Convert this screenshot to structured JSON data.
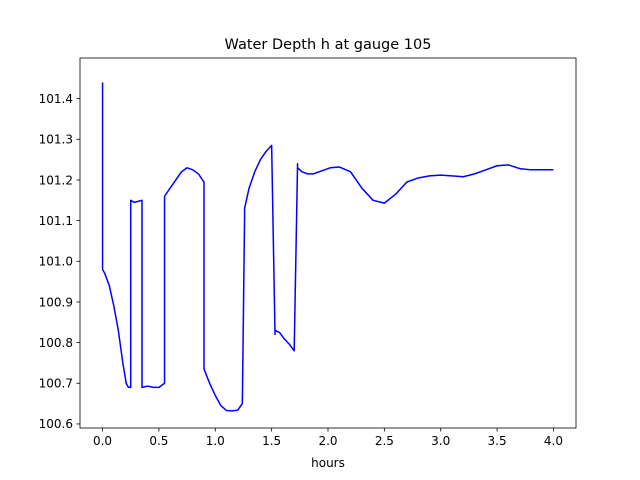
{
  "chart_data": {
    "type": "line",
    "title": "Water Depth h at gauge 105",
    "xlabel": "hours",
    "ylabel": "",
    "xlim": [
      -0.2,
      4.2
    ],
    "ylim": [
      100.59,
      101.5
    ],
    "x_ticks": [
      0.0,
      0.5,
      1.0,
      1.5,
      2.0,
      2.5,
      3.0,
      3.5,
      4.0
    ],
    "x_tick_labels": [
      "0.0",
      "0.5",
      "1.0",
      "1.5",
      "2.0",
      "2.5",
      "3.0",
      "3.5",
      "4.0"
    ],
    "y_ticks": [
      100.6,
      100.7,
      100.8,
      100.9,
      101.0,
      101.1,
      101.2,
      101.3,
      101.4
    ],
    "y_tick_labels": [
      "100.6",
      "100.7",
      "100.8",
      "100.9",
      "101.0",
      "101.1",
      "101.2",
      "101.3",
      "101.4"
    ],
    "grid": false,
    "color": "#0000ff",
    "series": [
      {
        "x": [
          0.0,
          0.0,
          0.02,
          0.06,
          0.1,
          0.14,
          0.18,
          0.21,
          0.23,
          0.25,
          0.25,
          0.28,
          0.31,
          0.35,
          0.35,
          0.4,
          0.45,
          0.5,
          0.55,
          0.55,
          0.6,
          0.65,
          0.7,
          0.75,
          0.8,
          0.85,
          0.9,
          0.9,
          0.95,
          1.0,
          1.05,
          1.1,
          1.15,
          1.2,
          1.24,
          1.26,
          1.26,
          1.3,
          1.35,
          1.4,
          1.45,
          1.5,
          1.53,
          1.53,
          1.57,
          1.61,
          1.66,
          1.7,
          1.73,
          1.73,
          1.77,
          1.82,
          1.87,
          1.92,
          1.97,
          2.02,
          2.1,
          2.2,
          2.3,
          2.4,
          2.5,
          2.6,
          2.7,
          2.8,
          2.9,
          3.0,
          3.1,
          3.2,
          3.3,
          3.4,
          3.5,
          3.6,
          3.7,
          3.8,
          3.9,
          4.0
        ],
        "y": [
          101.44,
          100.98,
          100.97,
          100.94,
          100.89,
          100.83,
          100.75,
          100.7,
          100.69,
          100.69,
          101.15,
          101.145,
          101.147,
          101.15,
          100.69,
          100.693,
          100.69,
          100.69,
          100.7,
          101.16,
          101.18,
          101.2,
          101.22,
          101.23,
          101.225,
          101.215,
          101.195,
          100.735,
          100.7,
          100.67,
          100.645,
          100.633,
          100.632,
          100.634,
          100.65,
          101.11,
          101.13,
          101.18,
          101.22,
          101.25,
          101.27,
          101.285,
          100.82,
          100.83,
          100.825,
          100.81,
          100.795,
          100.78,
          101.24,
          101.23,
          101.22,
          101.215,
          101.215,
          101.22,
          101.225,
          101.23,
          101.232,
          101.22,
          101.18,
          101.15,
          101.143,
          101.165,
          101.195,
          101.205,
          101.21,
          101.212,
          101.21,
          101.208,
          101.215,
          101.225,
          101.235,
          101.237,
          101.228,
          101.225,
          101.225,
          101.225
        ]
      }
    ]
  }
}
